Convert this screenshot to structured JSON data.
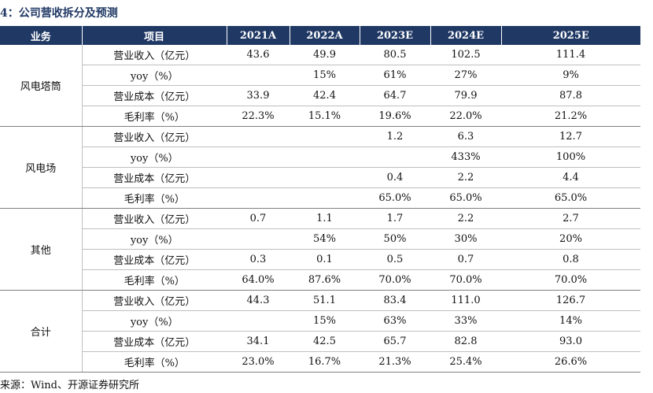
{
  "title": "4：公司营收拆分及预测",
  "header": [
    "业务",
    "项目",
    "2021A",
    "2022A",
    "2023E",
    "2024E",
    "2025E"
  ],
  "groups": [
    {
      "business": "风电塔筒",
      "rows": [
        {
          "item": "营业收入（亿元）",
          "values": [
            "43.6",
            "49.9",
            "80.5",
            "102.5",
            "111.4"
          ]
        },
        {
          "item": "yoy（%）",
          "values": [
            "",
            "15%",
            "61%",
            "27%",
            "9%"
          ]
        },
        {
          "item": "营业成本（亿元）",
          "values": [
            "33.9",
            "42.4",
            "64.7",
            "79.9",
            "87.8"
          ]
        },
        {
          "item": "毛利率（%）",
          "values": [
            "22.3%",
            "15.1%",
            "19.6%",
            "22.0%",
            "21.2%"
          ]
        }
      ]
    },
    {
      "business": "风电场",
      "rows": [
        {
          "item": "营业收入（亿元）",
          "values": [
            "",
            "",
            "1.2",
            "6.3",
            "12.7"
          ]
        },
        {
          "item": "yoy（%）",
          "values": [
            "",
            "",
            "",
            "433%",
            "100%"
          ]
        },
        {
          "item": "营业成本（亿元）",
          "values": [
            "",
            "",
            "0.4",
            "2.2",
            "4.4"
          ]
        },
        {
          "item": "毛利率（%）",
          "values": [
            "",
            "",
            "65.0%",
            "65.0%",
            "65.0%"
          ]
        }
      ]
    },
    {
      "business": "其他",
      "rows": [
        {
          "item": "营业收入（亿元）",
          "values": [
            "0.7",
            "1.1",
            "1.7",
            "2.2",
            "2.7"
          ]
        },
        {
          "item": "yoy（%）",
          "values": [
            "",
            "54%",
            "50%",
            "30%",
            "20%"
          ]
        },
        {
          "item": "营业成本（亿元）",
          "values": [
            "0.3",
            "0.1",
            "0.5",
            "0.7",
            "0.8"
          ]
        },
        {
          "item": "毛利率（%）",
          "values": [
            "64.0%",
            "87.6%",
            "70.0%",
            "70.0%",
            "70.0%"
          ]
        }
      ]
    },
    {
      "business": "合计",
      "rows": [
        {
          "item": "营业收入（亿元）",
          "values": [
            "44.3",
            "51.1",
            "83.4",
            "111.0",
            "126.7"
          ]
        },
        {
          "item": "yoy（%）",
          "values": [
            "",
            "15%",
            "63%",
            "33%",
            "14%"
          ]
        },
        {
          "item": "营业成本（亿元）",
          "values": [
            "34.1",
            "42.5",
            "65.7",
            "82.8",
            "93.0"
          ]
        },
        {
          "item": "毛利率（%）",
          "values": [
            "23.0%",
            "16.7%",
            "21.3%",
            "25.4%",
            "26.6%"
          ]
        }
      ]
    }
  ],
  "source": "来源：Wind、开源证券研究所"
}
